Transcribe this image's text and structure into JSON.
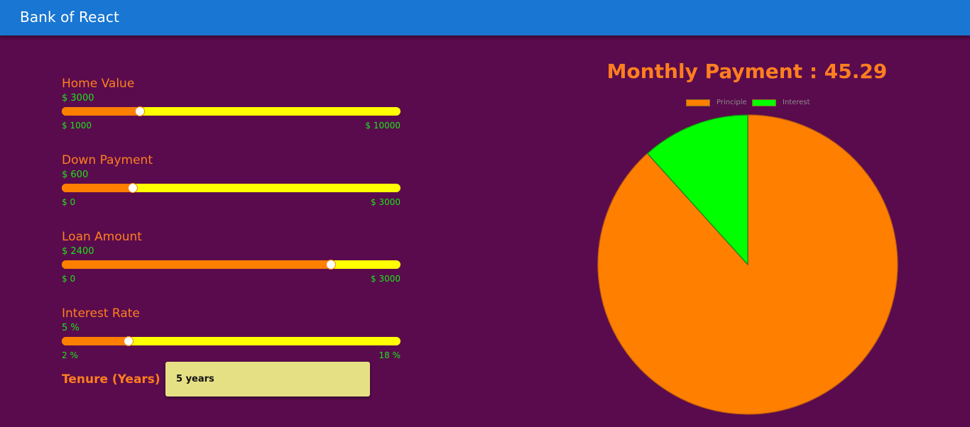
{
  "app": {
    "title": "Bank of React"
  },
  "calculator": {
    "home_value": {
      "label": "Home Value",
      "value_text": "$ 3000",
      "value": 3000,
      "min": 1000,
      "max": 10000,
      "min_text": "$ 1000",
      "max_text": "$ 10000"
    },
    "down_payment": {
      "label": "Down Payment",
      "value_text": "$ 600",
      "value": 600,
      "min": 0,
      "max": 3000,
      "min_text": "$ 0",
      "max_text": "$ 3000"
    },
    "loan_amount": {
      "label": "Loan Amount",
      "value_text": "$ 2400",
      "value": 2400,
      "min": 0,
      "max": 3000,
      "min_text": "$ 0",
      "max_text": "$ 3000"
    },
    "interest_rate": {
      "label": "Interest Rate",
      "value_text": "5 %",
      "value": 5,
      "min": 2,
      "max": 18,
      "min_text": "2 %",
      "max_text": "18 %"
    },
    "tenure": {
      "label": "Tenure (Years)",
      "selected": "5 years"
    }
  },
  "result": {
    "title": "Monthly Payment : 45.29"
  },
  "colors": {
    "slider_fill": "#ff7f00",
    "slider_track": "#ffff00",
    "principle": "#ff7f00",
    "interest": "#00ff00"
  },
  "chart_data": {
    "type": "pie",
    "labels": [
      "Principle",
      "Interest"
    ],
    "values": [
      2400,
      317.4
    ],
    "colors": [
      "#ff7f00",
      "#00ff00"
    ],
    "legend_position": "top"
  }
}
